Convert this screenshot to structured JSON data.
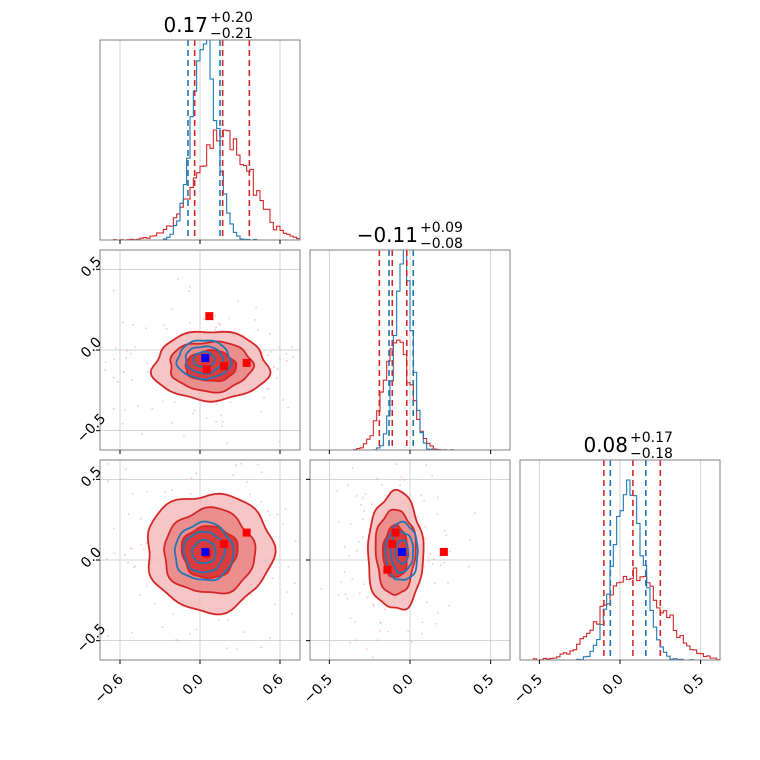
{
  "chart_data": {
    "type": "corner",
    "series_colors": {
      "red": "#d62728",
      "blue": "#1f77b4",
      "red_fill_light": "#f4b6b6",
      "red_fill_mid": "#e88080",
      "red_fill_dark": "#d62728",
      "marker_red": "#ff0000",
      "marker_blue": "#0000ff"
    },
    "parameters": [
      {
        "key": "p1",
        "range": [
          -0.75,
          0.75
        ],
        "ticks": [
          -0.6,
          0.0,
          0.6
        ],
        "tick_labels": [
          "−0.6",
          "0.0",
          "0.6"
        ]
      },
      {
        "key": "p2",
        "range": [
          -0.62,
          0.62
        ],
        "ticks": [
          -0.5,
          0.0,
          0.5
        ],
        "tick_labels": [
          "−0.5",
          "0.0",
          "0.5"
        ]
      },
      {
        "key": "p3",
        "range": [
          -0.62,
          0.62
        ],
        "ticks": [
          -0.5,
          0.0,
          0.5
        ],
        "tick_labels": [
          "−0.5",
          "0.0",
          "0.5"
        ]
      }
    ],
    "titles": [
      {
        "main": "0.17",
        "plus": "+0.20",
        "minus": "−0.21"
      },
      {
        "main": "−0.11",
        "plus": "+0.09",
        "minus": "−0.08"
      },
      {
        "main": "0.08",
        "plus": "+0.17",
        "minus": "−0.18"
      }
    ],
    "quantile_lines": {
      "p1": {
        "red": [
          -0.04,
          0.17,
          0.37
        ],
        "blue": [
          -0.09,
          0.15
        ]
      },
      "p2": {
        "red": [
          -0.19,
          -0.11,
          -0.02
        ],
        "blue": [
          -0.13,
          0.02
        ]
      },
      "p3": {
        "red": [
          -0.1,
          0.08,
          0.25
        ],
        "blue": [
          -0.06,
          0.16
        ]
      }
    },
    "marginals": {
      "p1": {
        "red": {
          "mean": 0.17,
          "sd": 0.2
        },
        "blue": {
          "mean": 0.03,
          "sd": 0.09
        }
      },
      "p2": {
        "red": {
          "mean": -0.08,
          "sd": 0.08
        },
        "blue": {
          "mean": -0.04,
          "sd": 0.05
        }
      },
      "p3": {
        "red": {
          "mean": 0.08,
          "sd": 0.18
        },
        "blue": {
          "mean": 0.05,
          "sd": 0.09
        }
      }
    },
    "panels_2d": [
      {
        "x": "p1",
        "y": "p2",
        "red": {
          "center": [
            0.08,
            -0.1
          ],
          "sd": [
            0.2,
            0.1
          ]
        },
        "blue": {
          "center": [
            0.03,
            -0.06
          ],
          "sd": [
            0.1,
            0.06
          ]
        },
        "markers_red": [
          [
            0.07,
            0.21
          ],
          [
            0.05,
            -0.12
          ],
          [
            0.18,
            -0.1
          ],
          [
            0.35,
            -0.08
          ]
        ],
        "markers_blue": [
          [
            0.04,
            -0.05
          ]
        ]
      },
      {
        "x": "p1",
        "y": "p3",
        "red": {
          "center": [
            0.07,
            0.05
          ],
          "sd": [
            0.22,
            0.17
          ]
        },
        "blue": {
          "center": [
            0.03,
            0.05
          ],
          "sd": [
            0.11,
            0.09
          ]
        },
        "markers_red": [
          [
            0.18,
            0.1
          ],
          [
            0.35,
            0.17
          ],
          [
            0.05,
            0.04
          ]
        ],
        "markers_blue": [
          [
            0.04,
            0.05
          ]
        ]
      },
      {
        "x": "p2",
        "y": "p3",
        "red": {
          "center": [
            -0.09,
            0.05
          ],
          "sd": [
            0.08,
            0.17
          ]
        },
        "blue": {
          "center": [
            -0.05,
            0.05
          ],
          "sd": [
            0.05,
            0.09
          ]
        },
        "markers_red": [
          [
            -0.09,
            0.17
          ],
          [
            -0.11,
            0.1
          ],
          [
            -0.14,
            -0.06
          ],
          [
            0.21,
            0.05
          ]
        ],
        "markers_blue": [
          [
            -0.05,
            0.05
          ]
        ]
      }
    ]
  }
}
